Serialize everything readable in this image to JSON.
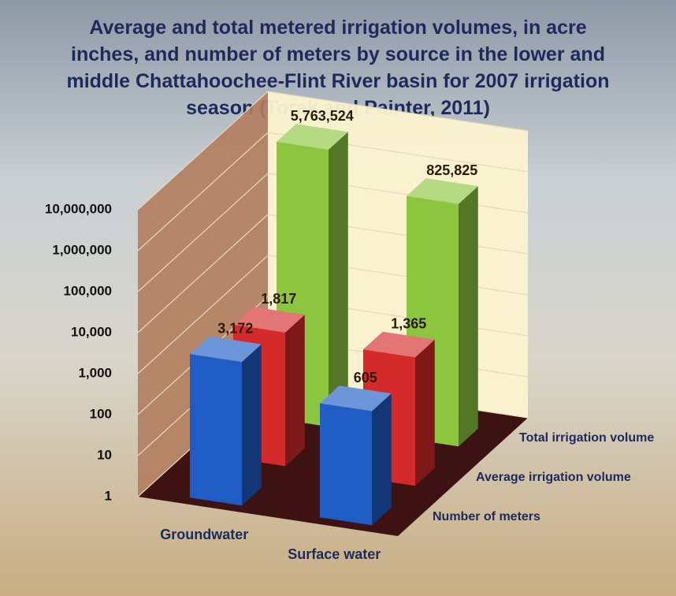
{
  "chart_data": {
    "type": "bar3d",
    "title": "Average and total metered irrigation volumes, in acre inches, and number of meters by source in the lower and middle Chattahoochee-Flint River basin for 2007 irrigation season (Torak and Painter, 2011)",
    "categories": [
      "Groundwater",
      "Surface water"
    ],
    "series": [
      {
        "name": "Number of meters",
        "color": "#1f5cc4",
        "values": [
          3172,
          605
        ],
        "value_labels": [
          "3,172",
          "605"
        ]
      },
      {
        "name": "Average irrigation volume",
        "color": "#d42a2a",
        "values": [
          1817,
          1365
        ],
        "value_labels": [
          "1,817",
          "1,365"
        ]
      },
      {
        "name": "Total irrigation volume",
        "color": "#8cc63f",
        "values": [
          5763524,
          825825
        ],
        "value_labels": [
          "5,763,524",
          "825,825"
        ]
      }
    ],
    "log": true,
    "ylim": [
      1,
      10000000
    ],
    "yticks": [
      1,
      10,
      100,
      {
        "value": 1000,
        "label": "1,000"
      },
      {
        "value": 10000,
        "label": "10,000"
      },
      {
        "value": 100000,
        "label": "100,000"
      },
      {
        "value": 1000000,
        "label": "1,000,000"
      },
      {
        "value": 10000000,
        "label": "10,000,000"
      }
    ],
    "grid": true
  }
}
